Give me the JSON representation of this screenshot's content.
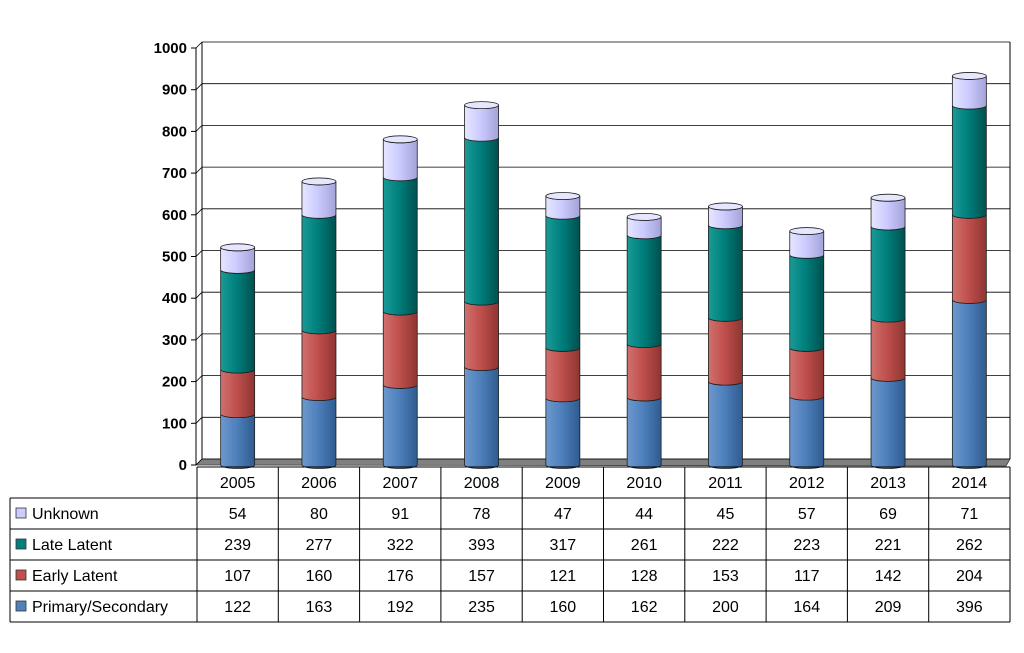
{
  "chart_data": {
    "type": "bar",
    "stacked": true,
    "title": "",
    "xlabel": "",
    "ylabel": "",
    "ylim": [
      0,
      1000
    ],
    "yticks": [
      0,
      100,
      200,
      300,
      400,
      500,
      600,
      700,
      800,
      900,
      1000
    ],
    "grid": true,
    "legend": "data-table-left",
    "categories": [
      "2005",
      "2006",
      "2007",
      "2008",
      "2009",
      "2010",
      "2011",
      "2012",
      "2013",
      "2014"
    ],
    "series": [
      {
        "name": "Primary/Secondary",
        "color": "#4f81bd",
        "values": [
          122,
          163,
          192,
          235,
          160,
          162,
          200,
          164,
          209,
          396
        ]
      },
      {
        "name": "Early Latent",
        "color": "#c0504d",
        "values": [
          107,
          160,
          176,
          157,
          121,
          128,
          153,
          117,
          142,
          204
        ]
      },
      {
        "name": "Late Latent",
        "color": "#00807d",
        "values": [
          239,
          277,
          322,
          393,
          317,
          261,
          222,
          223,
          221,
          262
        ]
      },
      {
        "name": "Unknown",
        "color": "#ccccff",
        "values": [
          54,
          80,
          91,
          78,
          47,
          44,
          45,
          57,
          69,
          71
        ]
      }
    ],
    "table_row_order": [
      "Unknown",
      "Late Latent",
      "Early Latent",
      "Primary/Secondary"
    ]
  }
}
